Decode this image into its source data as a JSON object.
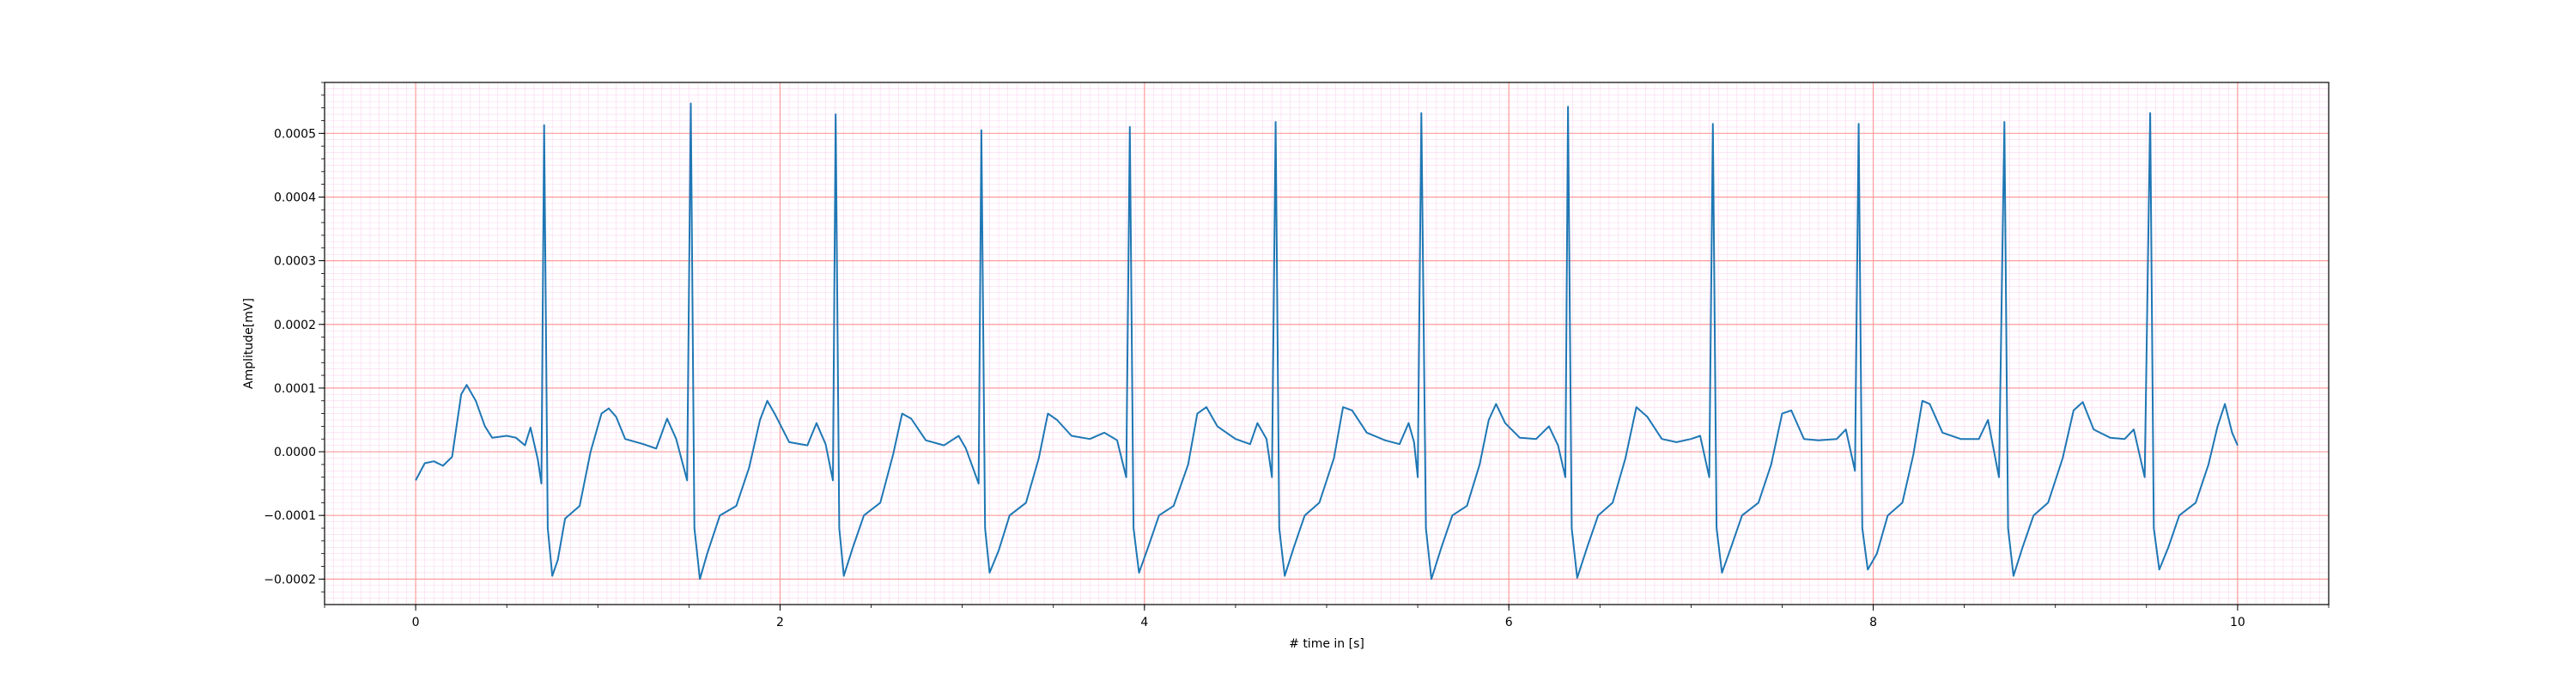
{
  "chart_data": {
    "type": "line",
    "title": "",
    "xlabel": "# time in [s]",
    "ylabel": "Amplitude[mV]",
    "xlim": [
      -0.5,
      10.5
    ],
    "ylim": [
      -0.00024,
      0.00058
    ],
    "x_ticks": [
      0,
      2,
      4,
      6,
      8,
      10
    ],
    "x_tick_labels": [
      "0",
      "2",
      "4",
      "6",
      "8",
      "10"
    ],
    "y_ticks": [
      -0.0002,
      -0.0001,
      0.0,
      0.0001,
      0.0002,
      0.0003,
      0.0004,
      0.0005
    ],
    "y_tick_labels": [
      "−0.0002",
      "−0.0001",
      "0.0000",
      "0.0001",
      "0.0002",
      "0.0003",
      "0.0004",
      "0.0005"
    ],
    "grid": {
      "major": true,
      "minor": true,
      "major_color": "#ff9a9a",
      "minor_color": "#fbd6ef"
    },
    "line_color": "#1f77b4",
    "r_peaks": [
      {
        "t": 0.705,
        "amp": 0.000513
      },
      {
        "t": 1.51,
        "amp": 0.000547
      },
      {
        "t": 2.305,
        "amp": 0.00053
      },
      {
        "t": 3.105,
        "amp": 0.000505
      },
      {
        "t": 3.92,
        "amp": 0.00051
      },
      {
        "t": 4.72,
        "amp": 0.000518
      },
      {
        "t": 5.52,
        "amp": 0.000532
      },
      {
        "t": 6.325,
        "amp": 0.000542
      },
      {
        "t": 7.12,
        "amp": 0.000515
      },
      {
        "t": 7.92,
        "amp": 0.000515
      },
      {
        "t": 8.72,
        "amp": 0.000518
      },
      {
        "t": 9.52,
        "amp": 0.000532
      }
    ],
    "series": [
      {
        "values": [
          [
            0.0,
            -4.5e-05
          ],
          [
            0.05,
            -1.8e-05
          ],
          [
            0.1,
            -1.5e-05
          ],
          [
            0.15,
            -2.2e-05
          ],
          [
            0.2,
            -8e-06
          ],
          [
            0.25,
            9e-05
          ],
          [
            0.28,
            0.000105
          ],
          [
            0.33,
            8e-05
          ],
          [
            0.38,
            4e-05
          ],
          [
            0.42,
            2.2e-05
          ],
          [
            0.5,
            2.5e-05
          ],
          [
            0.55,
            2.2e-05
          ],
          [
            0.6,
            1e-05
          ],
          [
            0.63,
            3.8e-05
          ],
          [
            0.67,
            -1.2e-05
          ],
          [
            0.69,
            -5e-05
          ],
          [
            0.705,
            0.000513
          ],
          [
            0.725,
            -0.00012
          ],
          [
            0.75,
            -0.000195
          ],
          [
            0.78,
            -0.00017
          ],
          [
            0.82,
            -0.000105
          ],
          [
            0.9,
            -8.5e-05
          ],
          [
            0.96,
            0.0
          ],
          [
            1.02,
            6e-05
          ],
          [
            1.06,
            6.8e-05
          ],
          [
            1.1,
            5.5e-05
          ],
          [
            1.15,
            2e-05
          ],
          [
            1.25,
            1.2e-05
          ],
          [
            1.32,
            5e-06
          ],
          [
            1.38,
            5.2e-05
          ],
          [
            1.43,
            2e-05
          ],
          [
            1.49,
            -4.5e-05
          ],
          [
            1.51,
            0.000547
          ],
          [
            1.53,
            -0.00012
          ],
          [
            1.56,
            -0.0002
          ],
          [
            1.6,
            -0.00016
          ],
          [
            1.67,
            -0.0001
          ],
          [
            1.76,
            -8.5e-05
          ],
          [
            1.83,
            -2.5e-05
          ],
          [
            1.89,
            5e-05
          ],
          [
            1.93,
            8e-05
          ],
          [
            1.97,
            6e-05
          ],
          [
            2.05,
            1.5e-05
          ],
          [
            2.15,
            1e-05
          ],
          [
            2.2,
            4.5e-05
          ],
          [
            2.25,
            1.2e-05
          ],
          [
            2.29,
            -4.5e-05
          ],
          [
            2.305,
            0.00053
          ],
          [
            2.325,
            -0.00012
          ],
          [
            2.35,
            -0.000195
          ],
          [
            2.4,
            -0.00015
          ],
          [
            2.46,
            -0.0001
          ],
          [
            2.55,
            -8e-05
          ],
          [
            2.62,
            -5e-06
          ],
          [
            2.67,
            6e-05
          ],
          [
            2.72,
            5.2e-05
          ],
          [
            2.8,
            1.8e-05
          ],
          [
            2.9,
            1e-05
          ],
          [
            2.98,
            2.5e-05
          ],
          [
            3.02,
            5e-06
          ],
          [
            3.09,
            -5e-05
          ],
          [
            3.105,
            0.000505
          ],
          [
            3.125,
            -0.00012
          ],
          [
            3.15,
            -0.00019
          ],
          [
            3.2,
            -0.000155
          ],
          [
            3.26,
            -0.0001
          ],
          [
            3.35,
            -8e-05
          ],
          [
            3.42,
            -1e-05
          ],
          [
            3.47,
            6e-05
          ],
          [
            3.52,
            5e-05
          ],
          [
            3.6,
            2.5e-05
          ],
          [
            3.7,
            2e-05
          ],
          [
            3.78,
            3e-05
          ],
          [
            3.85,
            1.8e-05
          ],
          [
            3.9,
            -4e-05
          ],
          [
            3.92,
            0.00051
          ],
          [
            3.94,
            -0.00012
          ],
          [
            3.97,
            -0.00019
          ],
          [
            4.02,
            -0.00015
          ],
          [
            4.08,
            -0.0001
          ],
          [
            4.16,
            -8.5e-05
          ],
          [
            4.24,
            -2e-05
          ],
          [
            4.29,
            6e-05
          ],
          [
            4.34,
            7e-05
          ],
          [
            4.4,
            4e-05
          ],
          [
            4.5,
            2e-05
          ],
          [
            4.58,
            1.2e-05
          ],
          [
            4.62,
            4.5e-05
          ],
          [
            4.67,
            2e-05
          ],
          [
            4.7,
            -4e-05
          ],
          [
            4.72,
            0.000518
          ],
          [
            4.74,
            -0.00012
          ],
          [
            4.77,
            -0.000195
          ],
          [
            4.82,
            -0.00015
          ],
          [
            4.88,
            -0.0001
          ],
          [
            4.96,
            -8e-05
          ],
          [
            5.04,
            -1e-05
          ],
          [
            5.09,
            7e-05
          ],
          [
            5.14,
            6.5e-05
          ],
          [
            5.22,
            3e-05
          ],
          [
            5.32,
            1.8e-05
          ],
          [
            5.4,
            1.2e-05
          ],
          [
            5.45,
            4.5e-05
          ],
          [
            5.48,
            1.5e-05
          ],
          [
            5.5,
            -4e-05
          ],
          [
            5.52,
            0.000532
          ],
          [
            5.545,
            -0.00012
          ],
          [
            5.575,
            -0.0002
          ],
          [
            5.63,
            -0.00015
          ],
          [
            5.69,
            -0.0001
          ],
          [
            5.77,
            -8.5e-05
          ],
          [
            5.84,
            -2e-05
          ],
          [
            5.89,
            5e-05
          ],
          [
            5.93,
            7.5e-05
          ],
          [
            5.98,
            4.5e-05
          ],
          [
            6.06,
            2.2e-05
          ],
          [
            6.15,
            2e-05
          ],
          [
            6.22,
            4e-05
          ],
          [
            6.27,
            1e-05
          ],
          [
            6.31,
            -4e-05
          ],
          [
            6.325,
            0.000542
          ],
          [
            6.345,
            -0.00012
          ],
          [
            6.375,
            -0.000198
          ],
          [
            6.43,
            -0.00015
          ],
          [
            6.49,
            -0.0001
          ],
          [
            6.57,
            -8e-05
          ],
          [
            6.64,
            -1e-05
          ],
          [
            6.7,
            7e-05
          ],
          [
            6.76,
            5.5e-05
          ],
          [
            6.84,
            2e-05
          ],
          [
            6.92,
            1.5e-05
          ],
          [
            7.0,
            2e-05
          ],
          [
            7.05,
            2.5e-05
          ],
          [
            7.1,
            -4e-05
          ],
          [
            7.12,
            0.000515
          ],
          [
            7.14,
            -0.00012
          ],
          [
            7.17,
            -0.00019
          ],
          [
            7.22,
            -0.00015
          ],
          [
            7.28,
            -0.0001
          ],
          [
            7.37,
            -8e-05
          ],
          [
            7.44,
            -2e-05
          ],
          [
            7.5,
            6e-05
          ],
          [
            7.55,
            6.5e-05
          ],
          [
            7.62,
            2e-05
          ],
          [
            7.7,
            1.8e-05
          ],
          [
            7.8,
            2e-05
          ],
          [
            7.85,
            3.5e-05
          ],
          [
            7.9,
            -3e-05
          ],
          [
            7.92,
            0.000515
          ],
          [
            7.94,
            -0.00012
          ],
          [
            7.97,
            -0.000185
          ],
          [
            8.02,
            -0.00016
          ],
          [
            8.08,
            -0.0001
          ],
          [
            8.16,
            -8e-05
          ],
          [
            8.22,
            -5e-06
          ],
          [
            8.27,
            8e-05
          ],
          [
            8.31,
            7.5e-05
          ],
          [
            8.38,
            3e-05
          ],
          [
            8.48,
            2e-05
          ],
          [
            8.58,
            2e-05
          ],
          [
            8.63,
            5e-05
          ],
          [
            8.69,
            -4e-05
          ],
          [
            8.72,
            0.000518
          ],
          [
            8.74,
            -0.00012
          ],
          [
            8.77,
            -0.000195
          ],
          [
            8.82,
            -0.00015
          ],
          [
            8.88,
            -0.0001
          ],
          [
            8.96,
            -8e-05
          ],
          [
            9.04,
            -1e-05
          ],
          [
            9.1,
            6.5e-05
          ],
          [
            9.15,
            7.8e-05
          ],
          [
            9.21,
            3.5e-05
          ],
          [
            9.3,
            2.2e-05
          ],
          [
            9.38,
            2e-05
          ],
          [
            9.43,
            3.5e-05
          ],
          [
            9.49,
            -4e-05
          ],
          [
            9.52,
            0.000532
          ],
          [
            9.54,
            -0.00012
          ],
          [
            9.57,
            -0.000185
          ],
          [
            9.62,
            -0.00015
          ],
          [
            9.68,
            -0.0001
          ],
          [
            9.77,
            -8e-05
          ],
          [
            9.84,
            -2e-05
          ],
          [
            9.89,
            4e-05
          ],
          [
            9.93,
            7.5e-05
          ],
          [
            9.97,
            3e-05
          ],
          [
            10.0,
            1e-05
          ]
        ]
      }
    ]
  }
}
